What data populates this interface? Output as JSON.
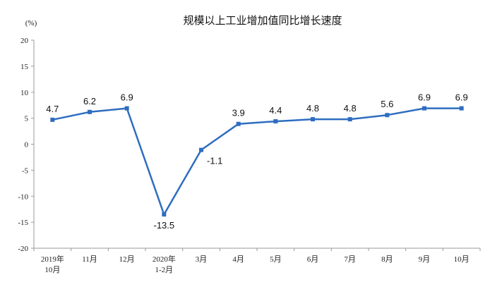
{
  "chart_data": {
    "type": "line",
    "title": "规模以上工业增加值同比增长速度",
    "unit_label": "(%)",
    "categories": [
      [
        "2019年",
        "10月"
      ],
      [
        "11月"
      ],
      [
        "12月"
      ],
      [
        "2020年",
        "1-2月"
      ],
      [
        "3月"
      ],
      [
        "4月"
      ],
      [
        "5月"
      ],
      [
        "6月"
      ],
      [
        "7月"
      ],
      [
        "8月"
      ],
      [
        "9月"
      ],
      [
        "10月"
      ]
    ],
    "values": [
      4.7,
      6.2,
      6.9,
      -13.5,
      -1.1,
      3.9,
      4.4,
      4.8,
      4.8,
      5.6,
      6.9,
      6.9
    ],
    "data_labels": [
      "4.7",
      "6.2",
      "6.9",
      "-13.5",
      "-1.1",
      "3.9",
      "4.4",
      "4.8",
      "4.8",
      "5.6",
      "6.9",
      "6.9"
    ],
    "ylim": [
      -20,
      20
    ],
    "yticks": [
      20,
      15,
      10,
      5,
      0,
      -5,
      -10,
      -15,
      -20
    ],
    "ytick_labels": [
      "20",
      "15",
      "10",
      "5",
      "0",
      "-5",
      "-10",
      "-15",
      "-20"
    ],
    "grid": false,
    "legend": "none",
    "line_color": "#2e6dc0",
    "marker": "square"
  }
}
